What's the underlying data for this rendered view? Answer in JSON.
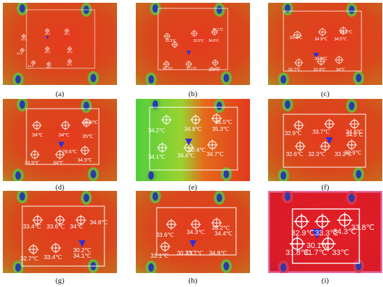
{
  "figure": {
    "panels": [
      {
        "caption": "(a)",
        "labels": [
          "33.5",
          "34.4",
          "34.4",
          "33.8",
          "34.5",
          "34.0",
          "34.4",
          "34.5",
          "34.1"
        ]
      },
      {
        "caption": "(b)",
        "labels": [
          "34.1℃",
          "32.9℃",
          "33.5℃",
          "34.8℃",
          "34.3℃",
          "32.1℃",
          "33.2℃",
          "33.8℃"
        ]
      },
      {
        "caption": "(c)",
        "labels": [
          "33.4℃",
          "34.9℃",
          "34.5℃",
          "35.3℃",
          "30.8℃",
          "33.7℃",
          "33.9℃",
          "34℃"
        ]
      },
      {
        "caption": "(d)",
        "labels": [
          "34℃",
          "34℃",
          "35.5℃",
          "35℃",
          "29.6℃",
          "33.9℃",
          "34℃",
          "34.5℃"
        ]
      },
      {
        "caption": "(e)",
        "labels": [
          "34.2℃",
          "34.8℃",
          "35.5℃",
          "35.3℃",
          "30.4℃",
          "34.1℃",
          "34.4℃",
          "34.7℃"
        ]
      },
      {
        "caption": "(f)",
        "labels": [
          "32.9℃",
          "33.7℃",
          "34.6℃",
          "34.5℃",
          "32.6℃",
          "32.3℃",
          "33.2℃",
          "33.9℃"
        ]
      },
      {
        "caption": "(g)",
        "labels": [
          "33.4℃",
          "33.6℃",
          "34℃",
          "34.8℃",
          "30.2℃",
          "32.7℃",
          "33.4℃",
          "34.1℃"
        ]
      },
      {
        "caption": "(h)",
        "labels": [
          "33.6℃",
          "34.3℃",
          "35.2℃",
          "34.4℃",
          "33.1℃",
          "30.7℃",
          "33.7℃",
          "34.8℃"
        ]
      },
      {
        "caption": "(i)",
        "labels": [
          "33.8℃",
          "32.9℃",
          "33.3℃",
          "34.3℃",
          "30.1℃",
          "31.8℃",
          "31.7℃",
          "33℃"
        ]
      }
    ]
  }
}
